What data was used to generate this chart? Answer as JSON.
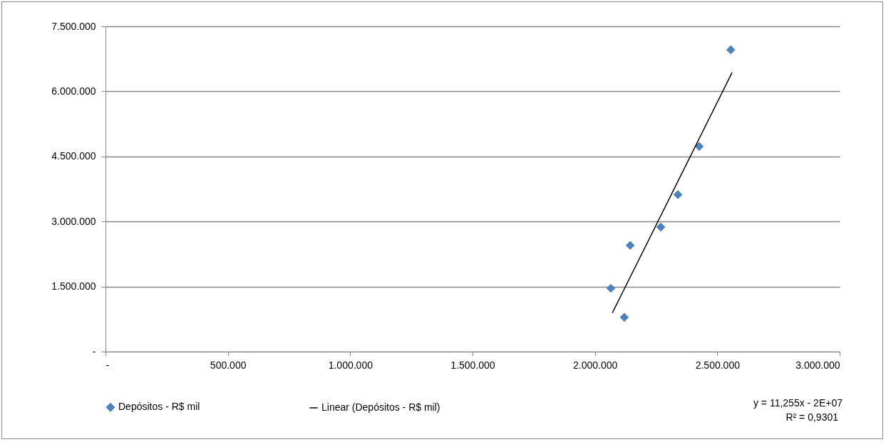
{
  "chart_data": {
    "type": "scatter",
    "xlim": [
      0,
      3000000
    ],
    "xticks": [
      {
        "value": 0,
        "label": "-"
      },
      {
        "value": 500000,
        "label": "500.000"
      },
      {
        "value": 1000000,
        "label": "1.000.000"
      },
      {
        "value": 1500000,
        "label": "1.500.000"
      },
      {
        "value": 2000000,
        "label": "2.000.000"
      },
      {
        "value": 2500000,
        "label": "2.500.000"
      },
      {
        "value": 3000000,
        "label": "3.000.000"
      }
    ],
    "ylim": [
      0,
      7500000
    ],
    "yticks": [
      {
        "value": 0,
        "label": "-"
      },
      {
        "value": 1500000,
        "label": "1.500.000"
      },
      {
        "value": 3000000,
        "label": "3.000.000"
      },
      {
        "value": 4500000,
        "label": "4.500.000"
      },
      {
        "value": 6000000,
        "label": "6.000.000"
      },
      {
        "value": 7500000,
        "label": "7.500.000"
      }
    ],
    "grid": "y",
    "legend": "bottom",
    "series": [
      {
        "name": "Depósitos - R$ mil",
        "color": "#4f81bd",
        "marker": "diamond",
        "x": [
          2065000,
          2120000,
          2144000,
          2269000,
          2339000,
          2426000,
          2555000
        ],
        "values": [
          1460000,
          790000,
          2450000,
          2870000,
          3620000,
          4730000,
          6960000
        ]
      },
      {
        "name": "Linear (Depósitos - R$ mil)",
        "type": "line",
        "color": "#000000",
        "marker": "none",
        "x": [
          2071000,
          2560000
        ],
        "values": [
          890000,
          6430000
        ]
      }
    ],
    "annotations": [
      "y = 11,255x - 2E+07",
      "R² = 0,9301"
    ]
  }
}
